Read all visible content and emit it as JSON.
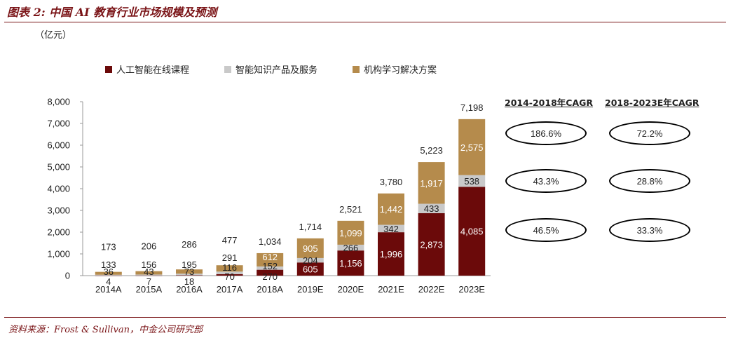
{
  "header": {
    "title": "图表 2:  中国 AI 教育行业市场规模及预测"
  },
  "unit_label": "（亿元）",
  "legend": [
    {
      "label": "人工智能在线课程",
      "color": "#6b0a0a"
    },
    {
      "label": "智能知识产品及服务",
      "color": "#c9c9c9"
    },
    {
      "label": "机构学习解决方案",
      "color": "#b58b4c"
    }
  ],
  "chart_data": {
    "type": "bar",
    "stacked": true,
    "categories": [
      "2014A",
      "2015A",
      "2016A",
      "2017A",
      "2018A",
      "2019E",
      "2020E",
      "2021E",
      "2022E",
      "2023E"
    ],
    "series": [
      {
        "name": "人工智能在线课程",
        "color": "#6b0a0a",
        "values": [
          4,
          7,
          18,
          70,
          270,
          605,
          1156,
          1996,
          2873,
          4085
        ]
      },
      {
        "name": "智能知识产品及服务",
        "color": "#c9c9c9",
        "values": [
          36,
          43,
          73,
          116,
          152,
          204,
          266,
          342,
          433,
          538
        ]
      },
      {
        "name": "机构学习解决方案",
        "color": "#b58b4c",
        "values": [
          133,
          156,
          195,
          291,
          612,
          905,
          1099,
          1442,
          1917,
          2575
        ]
      }
    ],
    "totals": [
      173,
      206,
      286,
      477,
      1034,
      1714,
      2521,
      3780,
      5223,
      7198
    ],
    "value_labels": {
      "series0": [
        "4",
        "7",
        "18",
        "70",
        "270",
        "605",
        "1,156",
        "1,996",
        "2,873",
        "4,085"
      ],
      "series1": [
        "36",
        "43",
        "73",
        "116",
        "152",
        "204",
        "266",
        "342",
        "433",
        "538"
      ],
      "series2": [
        "133",
        "156",
        "195",
        "291",
        "612",
        "905",
        "1,099",
        "1,442",
        "1,917",
        "2,575"
      ],
      "totals": [
        "173",
        "206",
        "286",
        "477",
        "1,034",
        "1,714",
        "2,521",
        "3,780",
        "5,223",
        "7,198"
      ]
    },
    "y_ticks": [
      "0",
      "1,000",
      "2,000",
      "3,000",
      "4,000",
      "5,000",
      "6,000",
      "7,000",
      "8,000"
    ],
    "ylim": [
      0,
      8000
    ],
    "grid": false,
    "legend_position": "top"
  },
  "cagr": {
    "headers": [
      "2014-2018年CAGR",
      "2018-2023E年CAGR"
    ],
    "rows": [
      [
        "186.6%",
        "72.2%"
      ],
      [
        "43.3%",
        "28.8%"
      ],
      [
        "46.5%",
        "33.3%"
      ]
    ]
  },
  "footer": {
    "source": "资料来源：Frost & Sullivan，中金公司研究部"
  }
}
